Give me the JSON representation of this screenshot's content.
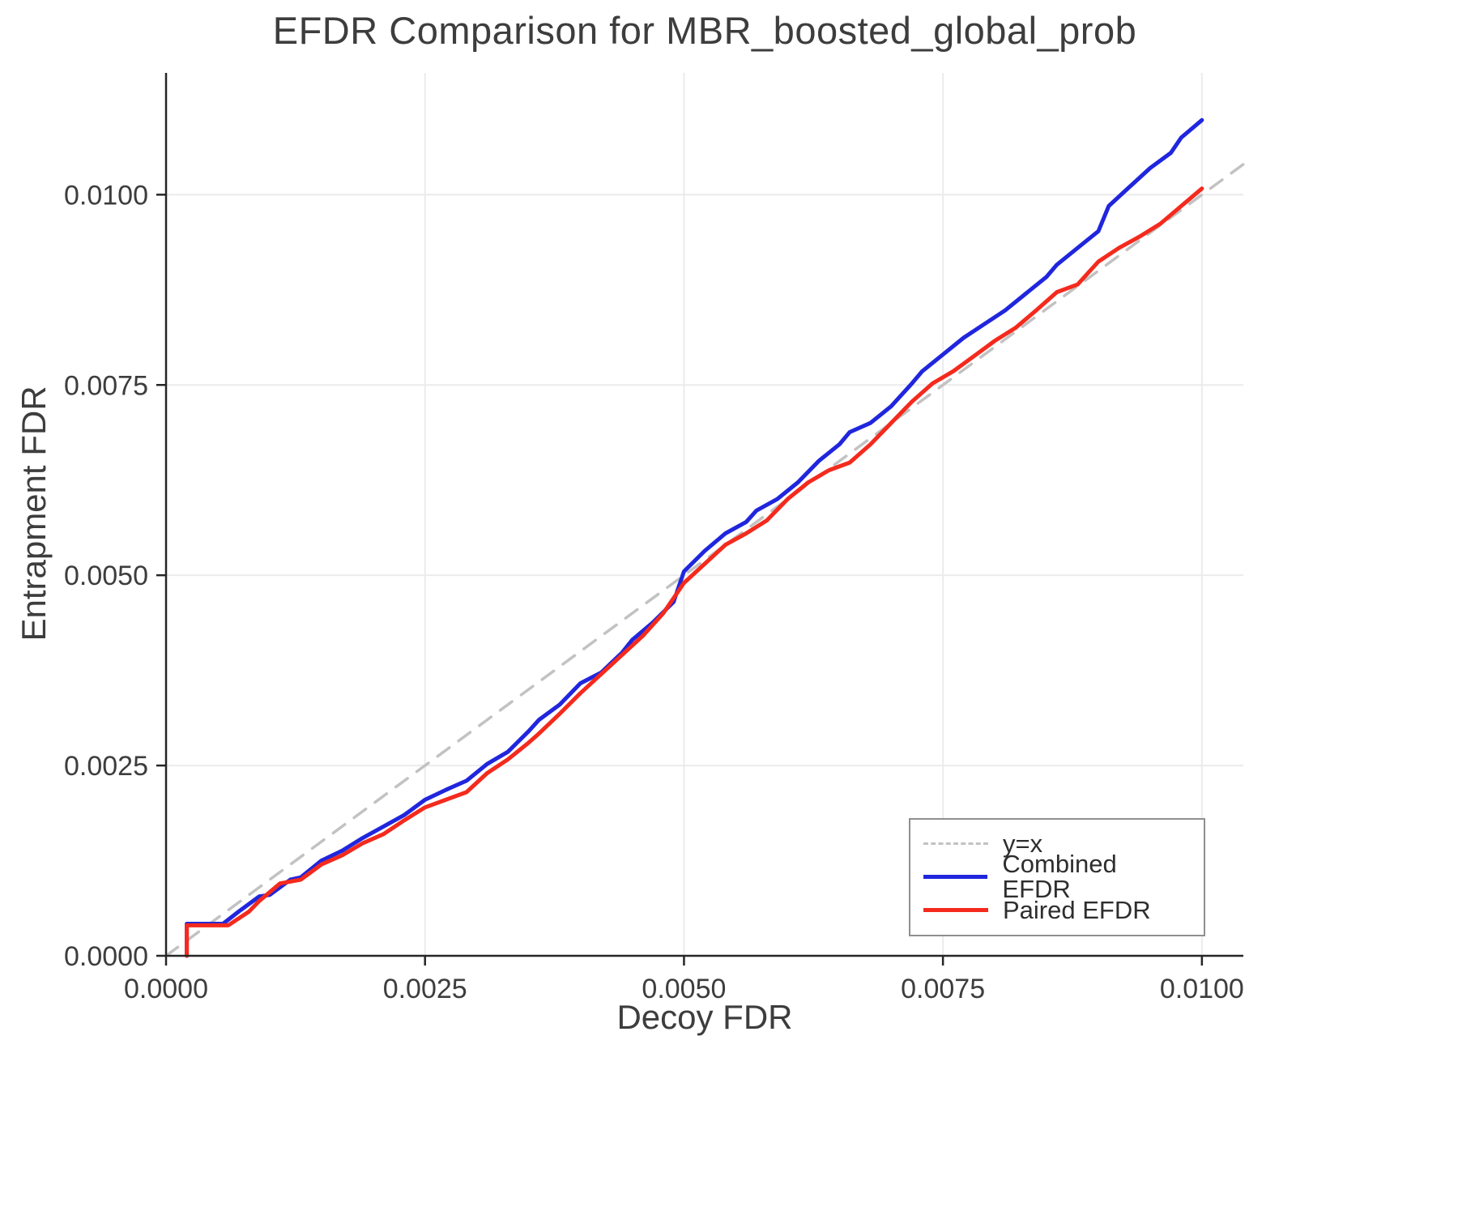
{
  "chart_data": {
    "type": "line",
    "title": "EFDR Comparison for MBR_boosted_global_prob",
    "xlabel": "Decoy FDR",
    "ylabel": "Entrapment FDR",
    "xlim": [
      0,
      0.0104
    ],
    "ylim": [
      0,
      0.0116
    ],
    "xticks": [
      0,
      0.0025,
      0.005,
      0.0075,
      0.01
    ],
    "xtick_labels": [
      "0.0000",
      "0.0025",
      "0.0050",
      "0.0075",
      "0.0100"
    ],
    "yticks": [
      0,
      0.0025,
      0.005,
      0.0075,
      0.01
    ],
    "ytick_labels": [
      "0.0000",
      "0.0025",
      "0.0050",
      "0.0075",
      "0.0100"
    ],
    "grid": true,
    "legend_position": "lower right",
    "colors": {
      "grid": "#ebebeb",
      "axis": "#262626",
      "text": "#3d3d3d",
      "diagonal": "#c2c2c2",
      "combined": "#2026dd",
      "paired": "#f42a1d"
    },
    "series": [
      {
        "name": "y=x",
        "style": "dashed",
        "color": "#c2c2c2",
        "x": [
          0,
          0.0104
        ],
        "y": [
          0,
          0.0104
        ]
      },
      {
        "name": "Combined EFDR",
        "style": "solid",
        "color": "#2026dd",
        "x": [
          0.0002,
          0.0002,
          0.00055,
          0.0007,
          0.0009,
          0.001,
          0.0012,
          0.0013,
          0.0015,
          0.0017,
          0.0019,
          0.0021,
          0.0023,
          0.0025,
          0.0027,
          0.0029,
          0.0031,
          0.0033,
          0.0035,
          0.0036,
          0.0038,
          0.004,
          0.0042,
          0.0044,
          0.0045,
          0.0047,
          0.0049,
          0.005,
          0.0052,
          0.0054,
          0.0056,
          0.0057,
          0.0059,
          0.0061,
          0.0063,
          0.0065,
          0.0066,
          0.0068,
          0.007,
          0.0072,
          0.0073,
          0.0075,
          0.0077,
          0.0079,
          0.0081,
          0.0083,
          0.0085,
          0.0086,
          0.0088,
          0.009,
          0.0091,
          0.0093,
          0.0095,
          0.0097,
          0.0098,
          0.01
        ],
        "y": [
          0,
          0.00042,
          0.00042,
          0.00058,
          0.00078,
          0.0008,
          0.001,
          0.00103,
          0.00125,
          0.00138,
          0.00155,
          0.0017,
          0.00185,
          0.00205,
          0.00218,
          0.0023,
          0.00252,
          0.00268,
          0.00295,
          0.0031,
          0.0033,
          0.00358,
          0.00372,
          0.00398,
          0.00415,
          0.00438,
          0.00465,
          0.00505,
          0.00532,
          0.00555,
          0.0057,
          0.00585,
          0.006,
          0.00622,
          0.0065,
          0.00672,
          0.00688,
          0.007,
          0.00722,
          0.00752,
          0.00768,
          0.0079,
          0.00812,
          0.0083,
          0.00848,
          0.0087,
          0.00892,
          0.00908,
          0.0093,
          0.00952,
          0.00985,
          0.0101,
          0.01035,
          0.01055,
          0.01075,
          0.01098
        ]
      },
      {
        "name": "Paired EFDR",
        "style": "solid",
        "color": "#f42a1d",
        "x": [
          0.0002,
          0.0002,
          0.0006,
          0.0008,
          0.0009,
          0.0011,
          0.0013,
          0.0015,
          0.0017,
          0.0019,
          0.0021,
          0.0023,
          0.0025,
          0.0027,
          0.0029,
          0.0031,
          0.0033,
          0.0035,
          0.0036,
          0.0038,
          0.004,
          0.0042,
          0.0044,
          0.0046,
          0.0048,
          0.005,
          0.0052,
          0.0054,
          0.0056,
          0.0058,
          0.006,
          0.0062,
          0.0064,
          0.0066,
          0.0068,
          0.007,
          0.0072,
          0.0074,
          0.0076,
          0.0078,
          0.008,
          0.0082,
          0.0084,
          0.0086,
          0.0088,
          0.009,
          0.0092,
          0.0094,
          0.0096,
          0.0098,
          0.01
        ],
        "y": [
          0,
          0.0004,
          0.0004,
          0.00058,
          0.00072,
          0.00095,
          0.001,
          0.0012,
          0.00132,
          0.00148,
          0.0016,
          0.00178,
          0.00195,
          0.00205,
          0.00215,
          0.0024,
          0.00258,
          0.0028,
          0.00292,
          0.00318,
          0.00345,
          0.0037,
          0.00395,
          0.0042,
          0.0045,
          0.0049,
          0.00515,
          0.0054,
          0.00555,
          0.00572,
          0.006,
          0.00622,
          0.00638,
          0.00648,
          0.00672,
          0.007,
          0.00728,
          0.00752,
          0.00768,
          0.00788,
          0.00808,
          0.00825,
          0.00848,
          0.00872,
          0.00882,
          0.00912,
          0.0093,
          0.00945,
          0.00962,
          0.00985,
          0.01008
        ]
      }
    ]
  }
}
